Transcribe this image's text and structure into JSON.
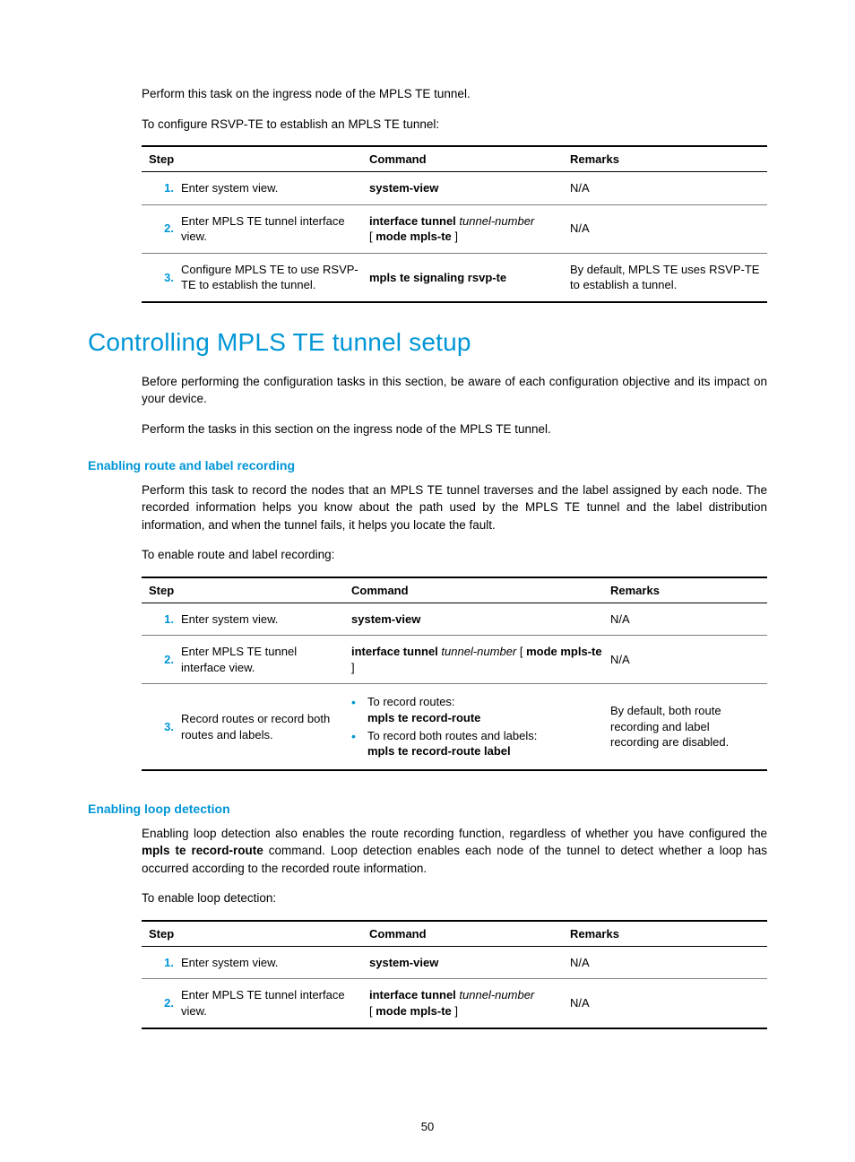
{
  "intro": {
    "p1": "Perform this task on the ingress node of the MPLS TE tunnel.",
    "p2": "To configure RSVP-TE to establish an MPLS TE tunnel:"
  },
  "table1": {
    "headers": {
      "step": "Step",
      "command": "Command",
      "remarks": "Remarks"
    },
    "rows": [
      {
        "num": "1.",
        "step": "Enter system view.",
        "command_html": "<span class=\"bold\">system-view</span>",
        "remarks": "N/A"
      },
      {
        "num": "2.",
        "step": "Enter MPLS TE tunnel interface view.",
        "command_html": "<span class=\"bold\">interface tunnel</span> <span class=\"italic\">tunnel-number</span><br>[ <span class=\"bold\">mode mpls-te</span> ]",
        "remarks": "N/A"
      },
      {
        "num": "3.",
        "step": "Configure MPLS TE to use RSVP-TE to establish the tunnel.",
        "command_html": "<span class=\"bold\">mpls te signaling rsvp-te</span>",
        "remarks": "By default, MPLS TE uses RSVP-TE to establish a tunnel."
      }
    ]
  },
  "heading1": "Controlling MPLS TE tunnel setup",
  "sec1": {
    "p1": "Before performing the configuration tasks in this section, be aware of each configuration objective and its impact on your device.",
    "p2": "Perform the tasks in this section on the ingress node of the MPLS TE tunnel."
  },
  "heading_rec": "Enabling route and label recording",
  "rec": {
    "p1": "Perform this task to record the nodes that an MPLS TE tunnel traverses and the label assigned by each node. The recorded information helps you know about the path used by the MPLS TE tunnel and the label distribution information, and when the tunnel fails, it helps you locate the fault.",
    "p2": "To enable route and label recording:"
  },
  "table2": {
    "headers": {
      "step": "Step",
      "command": "Command",
      "remarks": "Remarks"
    },
    "rows": [
      {
        "num": "1.",
        "step": "Enter system view.",
        "command_html": "<span class=\"bold\">system-view</span>",
        "remarks": "N/A"
      },
      {
        "num": "2.",
        "step": "Enter MPLS TE tunnel interface view.",
        "command_html": "<span class=\"bold\">interface tunnel</span> <span class=\"italic\">tunnel-number</span> [ <span class=\"bold\">mode mpls-te</span> ]",
        "remarks": "N/A"
      },
      {
        "num": "3.",
        "step": "Record routes or record both routes and labels.",
        "command_html": "<ul class=\"bullet-list\"><li>To record routes:<br><span class=\"bold\">mpls te record-route</span></li><li>To record both routes and labels:<br><span class=\"bold\">mpls te record-route label</span></li></ul>",
        "remarks": "By default, both route recording and label recording are disabled."
      }
    ]
  },
  "heading_loop": "Enabling loop detection",
  "loop": {
    "p1_html": "Enabling loop detection also enables the route recording function, regardless of whether you have configured the <span class=\"bold\">mpls te record-route</span> command. Loop detection enables each node of the tunnel to detect whether a loop has occurred according to the recorded route information.",
    "p2": "To enable loop detection:"
  },
  "table3": {
    "headers": {
      "step": "Step",
      "command": "Command",
      "remarks": "Remarks"
    },
    "rows": [
      {
        "num": "1.",
        "step": "Enter system view.",
        "command_html": "<span class=\"bold\">system-view</span>",
        "remarks": "N/A"
      },
      {
        "num": "2.",
        "step": "Enter MPLS TE tunnel interface view.",
        "command_html": "<span class=\"bold\">interface tunnel</span> <span class=\"italic\">tunnel-number</span><br>[ <span class=\"bold\">mode mpls-te</span> ]",
        "remarks": "N/A"
      }
    ]
  },
  "page_number": "50"
}
